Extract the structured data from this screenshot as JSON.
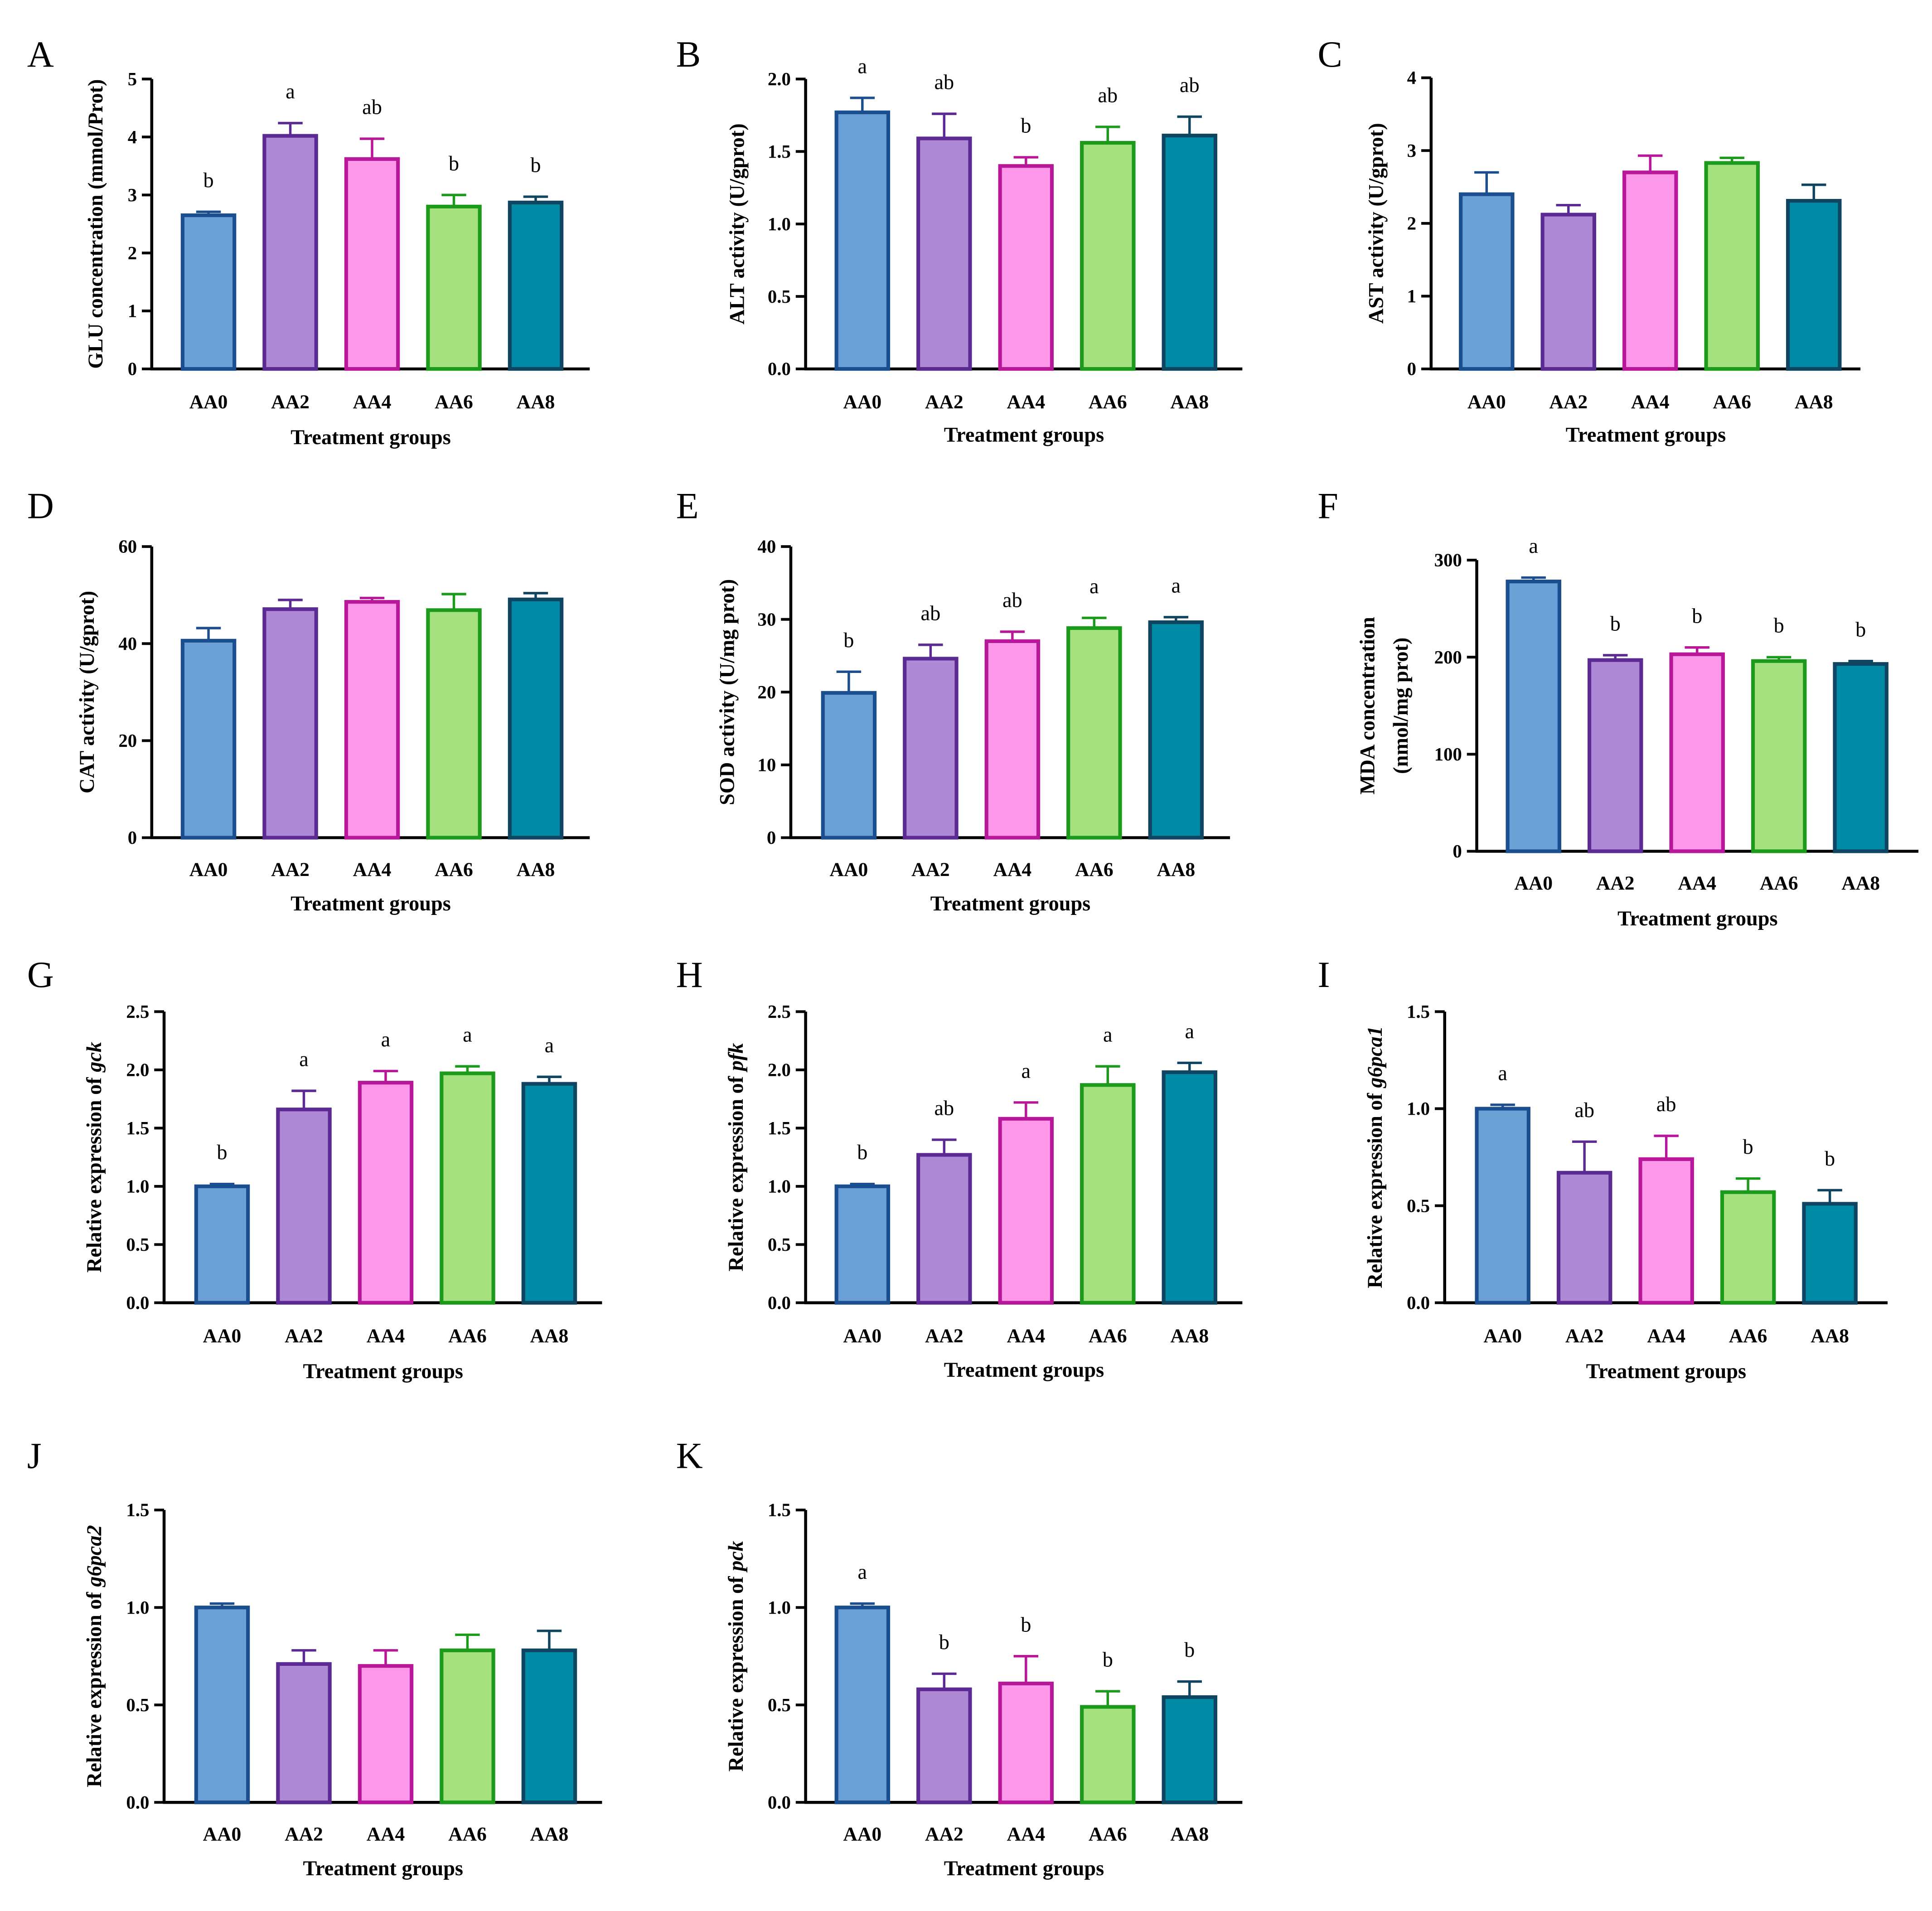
{
  "chart_data": [
    {
      "id": "A",
      "type": "bar",
      "panel_label": "A",
      "categories": [
        "AA0",
        "AA2",
        "AA4",
        "AA6",
        "AA8"
      ],
      "values": [
        2.65,
        4.02,
        3.62,
        2.8,
        2.87
      ],
      "errors": [
        0.06,
        0.22,
        0.35,
        0.2,
        0.1
      ],
      "letters": [
        "b",
        "a",
        "ab",
        "b",
        "b"
      ],
      "ylabel": "GLU concentration (mmol/Prot)",
      "xlabel": "Treatment groups",
      "ylim": [
        0,
        5
      ],
      "yticks": [
        0,
        1,
        2,
        3,
        4,
        5
      ],
      "ytick_labels": [
        "0",
        "1",
        "2",
        "3",
        "4",
        "5"
      ]
    },
    {
      "id": "B",
      "type": "bar",
      "panel_label": "B",
      "categories": [
        "AA0",
        "AA2",
        "AA4",
        "AA6",
        "AA8"
      ],
      "values": [
        1.77,
        1.59,
        1.4,
        1.56,
        1.61
      ],
      "errors": [
        0.1,
        0.17,
        0.06,
        0.11,
        0.13
      ],
      "letters": [
        "a",
        "ab",
        "b",
        "ab",
        "ab"
      ],
      "ylabel": "ALT activity (U/gprot)",
      "xlabel": "Treatment groups",
      "ylim": [
        0,
        2.0
      ],
      "yticks": [
        0,
        0.5,
        1.0,
        1.5,
        2.0
      ],
      "ytick_labels": [
        "0.0",
        "0.5",
        "1.0",
        "1.5",
        "2.0"
      ]
    },
    {
      "id": "C",
      "type": "bar",
      "panel_label": "C",
      "categories": [
        "AA0",
        "AA2",
        "AA4",
        "AA6",
        "AA8"
      ],
      "values": [
        2.4,
        2.12,
        2.7,
        2.83,
        2.31
      ],
      "errors": [
        0.3,
        0.13,
        0.23,
        0.07,
        0.22
      ],
      "letters": [
        "",
        "",
        "",
        "",
        ""
      ],
      "ylabel": "AST activity (U/gprot)",
      "xlabel": "Treatment groups",
      "ylim": [
        0,
        4
      ],
      "yticks": [
        0,
        1,
        2,
        3,
        4
      ],
      "ytick_labels": [
        "0",
        "1",
        "2",
        "3",
        "4"
      ]
    },
    {
      "id": "D",
      "type": "bar",
      "panel_label": "D",
      "categories": [
        "AA0",
        "AA2",
        "AA4",
        "AA6",
        "AA8"
      ],
      "values": [
        40.6,
        47.1,
        48.6,
        46.9,
        49.1
      ],
      "errors": [
        2.6,
        1.9,
        0.8,
        3.3,
        1.3
      ],
      "letters": [
        "",
        "",
        "",
        "",
        ""
      ],
      "ylabel": "CAT activity (U/gprot)",
      "xlabel": "Treatment groups",
      "ylim": [
        0,
        60
      ],
      "yticks": [
        0,
        20,
        40,
        60
      ],
      "ytick_labels": [
        "0",
        "20",
        "40",
        "60"
      ]
    },
    {
      "id": "E",
      "type": "bar",
      "panel_label": "E",
      "categories": [
        "AA0",
        "AA2",
        "AA4",
        "AA6",
        "AA8"
      ],
      "values": [
        19.9,
        24.6,
        27.0,
        28.8,
        29.6
      ],
      "errors": [
        2.9,
        1.9,
        1.3,
        1.4,
        0.7
      ],
      "letters": [
        "b",
        "ab",
        "ab",
        "a",
        "a"
      ],
      "ylabel": "SOD activity (U/mg prot)",
      "xlabel": "Treatment groups",
      "ylim": [
        0,
        40
      ],
      "yticks": [
        0,
        10,
        20,
        30,
        40
      ],
      "ytick_labels": [
        "0",
        "10",
        "20",
        "30",
        "40"
      ]
    },
    {
      "id": "F",
      "type": "bar",
      "panel_label": "F",
      "categories": [
        "AA0",
        "AA2",
        "AA4",
        "AA6",
        "AA8"
      ],
      "values": [
        278,
        197,
        203,
        196,
        193
      ],
      "errors": [
        4,
        5,
        7,
        4,
        3
      ],
      "letters": [
        "a",
        "b",
        "b",
        "b",
        "b"
      ],
      "ylabel": "MDA concentration",
      "ylabel2": "(nmol/mg prot)",
      "xlabel": "Treatment groups",
      "ylim": [
        0,
        300
      ],
      "yticks": [
        0,
        100,
        200,
        300
      ],
      "ytick_labels": [
        "0",
        "100",
        "200",
        "300"
      ]
    },
    {
      "id": "G",
      "type": "bar",
      "panel_label": "G",
      "categories": [
        "AA0",
        "AA2",
        "AA4",
        "AA6",
        "AA8"
      ],
      "values": [
        1.0,
        1.66,
        1.89,
        1.97,
        1.88
      ],
      "errors": [
        0.02,
        0.16,
        0.1,
        0.06,
        0.06
      ],
      "letters": [
        "b",
        "a",
        "a",
        "a",
        "a"
      ],
      "ylabel_prefix": "Relative expression of ",
      "ylabel_gene": "gck",
      "xlabel": "Treatment groups",
      "ylim": [
        0,
        2.5
      ],
      "yticks": [
        0,
        0.5,
        1.0,
        1.5,
        2.0,
        2.5
      ],
      "ytick_labels": [
        "0.0",
        "0.5",
        "1.0",
        "1.5",
        "2.0",
        "2.5"
      ]
    },
    {
      "id": "H",
      "type": "bar",
      "panel_label": "H",
      "categories": [
        "AA0",
        "AA2",
        "AA4",
        "AA6",
        "AA8"
      ],
      "values": [
        1.0,
        1.27,
        1.58,
        1.87,
        1.98
      ],
      "errors": [
        0.02,
        0.13,
        0.14,
        0.16,
        0.08
      ],
      "letters": [
        "b",
        "ab",
        "a",
        "a",
        "a"
      ],
      "ylabel_prefix": "Relative expression of ",
      "ylabel_gene": "pfk",
      "xlabel": "Treatment groups",
      "ylim": [
        0,
        2.5
      ],
      "yticks": [
        0,
        0.5,
        1.0,
        1.5,
        2.0,
        2.5
      ],
      "ytick_labels": [
        "0.0",
        "0.5",
        "1.0",
        "1.5",
        "2.0",
        "2.5"
      ]
    },
    {
      "id": "I",
      "type": "bar",
      "panel_label": "I",
      "categories": [
        "AA0",
        "AA2",
        "AA4",
        "AA6",
        "AA8"
      ],
      "values": [
        1.0,
        0.67,
        0.74,
        0.57,
        0.51
      ],
      "errors": [
        0.02,
        0.16,
        0.12,
        0.07,
        0.07
      ],
      "letters": [
        "a",
        "ab",
        "ab",
        "b",
        "b"
      ],
      "ylabel_prefix": "Relative expression of ",
      "ylabel_gene": "g6pca1",
      "xlabel": "Treatment groups",
      "ylim": [
        0,
        1.5
      ],
      "yticks": [
        0,
        0.5,
        1.0,
        1.5
      ],
      "ytick_labels": [
        "0.0",
        "0.5",
        "1.0",
        "1.5"
      ]
    },
    {
      "id": "J",
      "type": "bar",
      "panel_label": "J",
      "categories": [
        "AA0",
        "AA2",
        "AA4",
        "AA6",
        "AA8"
      ],
      "values": [
        1.0,
        0.71,
        0.7,
        0.78,
        0.78
      ],
      "errors": [
        0.02,
        0.07,
        0.08,
        0.08,
        0.1
      ],
      "letters": [
        "",
        "",
        "",
        "",
        ""
      ],
      "ylabel_prefix": "Relative expression of ",
      "ylabel_gene": "g6pca2",
      "xlabel": "Treatment groups",
      "ylim": [
        0,
        1.5
      ],
      "yticks": [
        0,
        0.5,
        1.0,
        1.5
      ],
      "ytick_labels": [
        "0.0",
        "0.5",
        "1.0",
        "1.5"
      ]
    },
    {
      "id": "K",
      "type": "bar",
      "panel_label": "K",
      "categories": [
        "AA0",
        "AA2",
        "AA4",
        "AA6",
        "AA8"
      ],
      "values": [
        1.0,
        0.58,
        0.61,
        0.49,
        0.54
      ],
      "errors": [
        0.02,
        0.08,
        0.14,
        0.08,
        0.08
      ],
      "letters": [
        "a",
        "b",
        "b",
        "b",
        "b"
      ],
      "ylabel_prefix": "Relative expression of ",
      "ylabel_gene": "pck",
      "xlabel": "Treatment groups",
      "ylim": [
        0,
        1.5
      ],
      "yticks": [
        0,
        0.5,
        1.0,
        1.5
      ],
      "ytick_labels": [
        "0.0",
        "0.5",
        "1.0",
        "1.5"
      ]
    }
  ],
  "series_colors": {
    "fills": [
      "#6aa0d6",
      "#ae8ad6",
      "#fd97ea",
      "#a6e17f",
      "#008aa6"
    ],
    "strokes": [
      "#1a4e8e",
      "#5b2a93",
      "#b8179a",
      "#1c9a1c",
      "#0f4560"
    ]
  }
}
